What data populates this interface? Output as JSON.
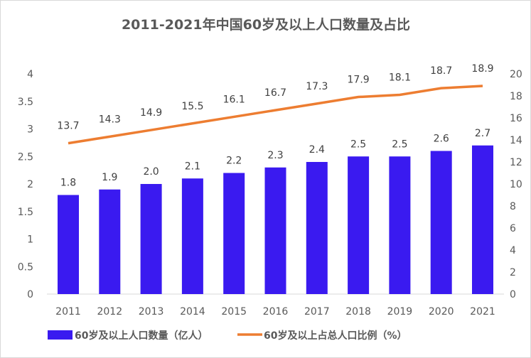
{
  "chart_data": {
    "type": "bar+line",
    "title": "2011-2021年中国60岁及以上人口数量及占比",
    "categories": [
      "2011",
      "2012",
      "2013",
      "2014",
      "2015",
      "2016",
      "2017",
      "2018",
      "2019",
      "2020",
      "2021"
    ],
    "series": [
      {
        "name": "60岁及以上人口数量（亿人）",
        "type": "bar",
        "axis": "left",
        "color": "#3A1AF0",
        "values": [
          1.8,
          1.9,
          2.0,
          2.1,
          2.2,
          2.3,
          2.4,
          2.5,
          2.5,
          2.6,
          2.7
        ],
        "labels": [
          "1.8",
          "1.9",
          "2.0",
          "2.1",
          "2.2",
          "2.3",
          "2.4",
          "2.5",
          "2.5",
          "2.6",
          "2.7"
        ]
      },
      {
        "name": "60岁及以上占总人口比例（%）",
        "type": "line",
        "axis": "right",
        "color": "#ED7D31",
        "values": [
          13.7,
          14.3,
          14.9,
          15.5,
          16.1,
          16.7,
          17.3,
          17.9,
          18.1,
          18.7,
          18.9
        ],
        "labels": [
          "13.7",
          "14.3",
          "14.9",
          "15.5",
          "16.1",
          "16.7",
          "17.3",
          "17.9",
          "18.1",
          "18.7",
          "18.9"
        ]
      }
    ],
    "y_left": {
      "range": [
        0,
        4
      ],
      "ticks": [
        "0",
        "0.5",
        "1",
        "1.5",
        "2",
        "2.5",
        "3",
        "3.5",
        "4"
      ]
    },
    "y_right": {
      "range": [
        0,
        20
      ],
      "ticks": [
        "0",
        "2",
        "4",
        "6",
        "8",
        "10",
        "12",
        "14",
        "16",
        "18",
        "20"
      ]
    },
    "grid": false,
    "legend": "bottom"
  }
}
